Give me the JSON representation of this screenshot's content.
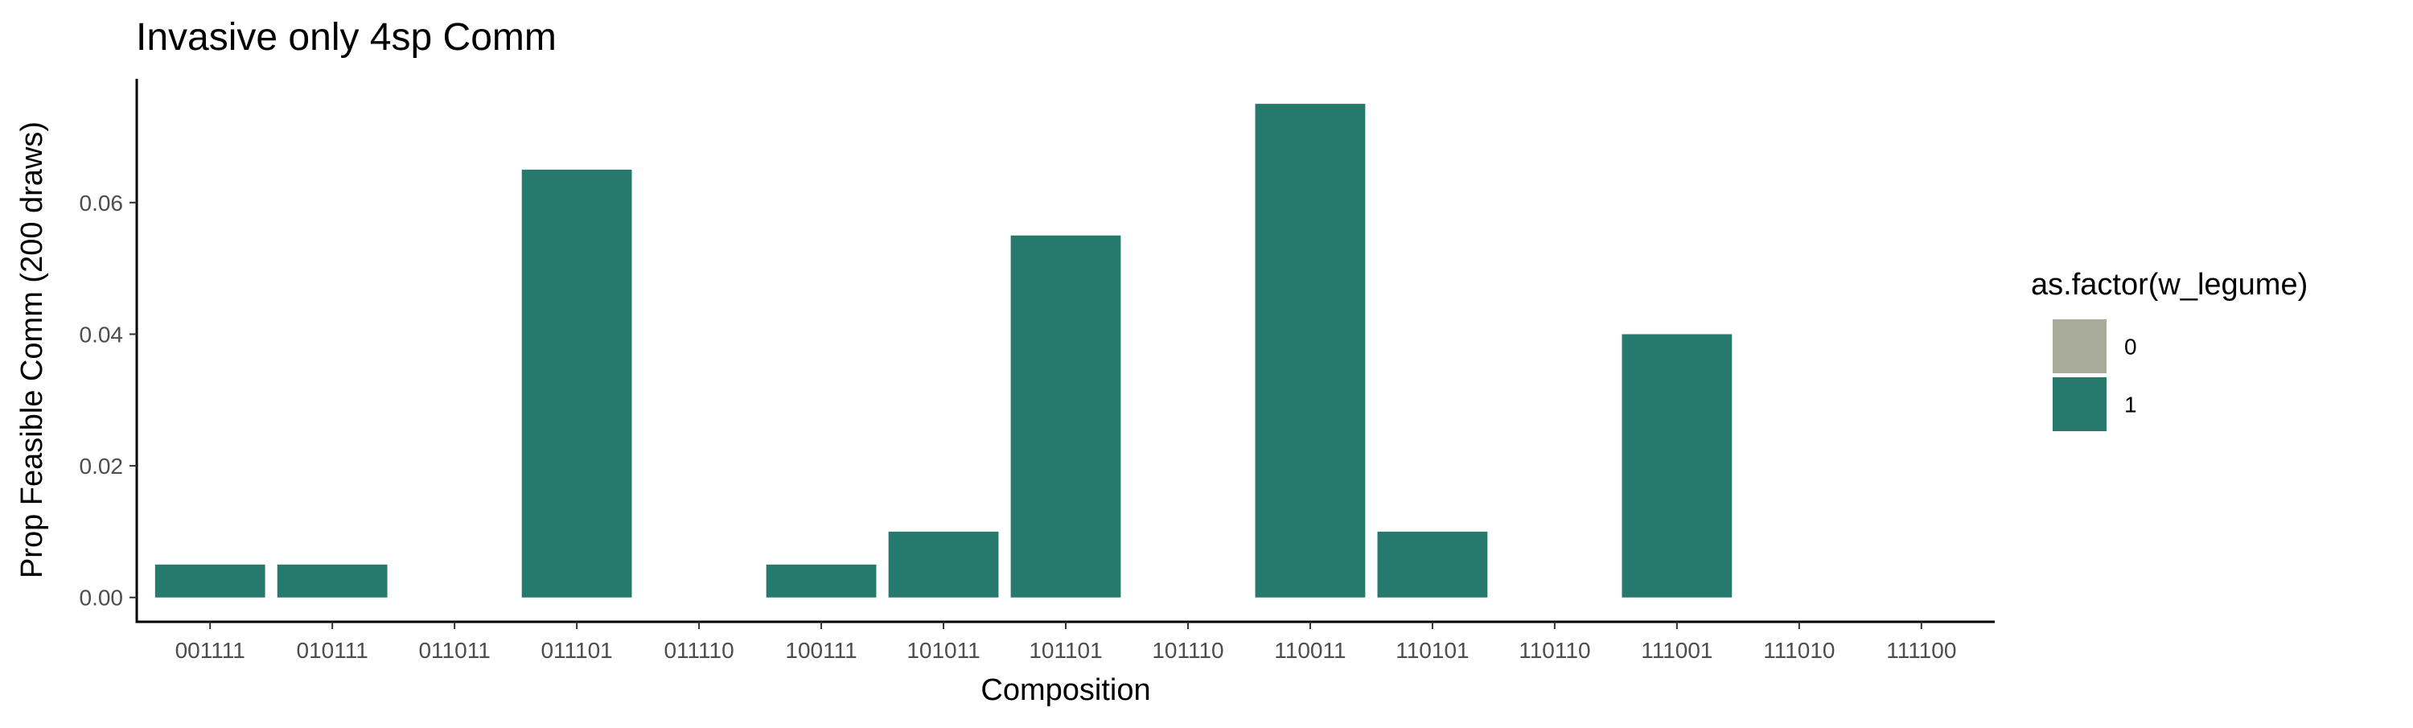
{
  "chart_data": {
    "type": "bar",
    "title": "Invasive only 4sp Comm",
    "xlabel": "Composition",
    "ylabel": "Prop Feasible Comm (200 draws)",
    "categories": [
      "001111",
      "010111",
      "011011",
      "011101",
      "011110",
      "100111",
      "101011",
      "101101",
      "101110",
      "110011",
      "110101",
      "110110",
      "111001",
      "111010",
      "111100"
    ],
    "values": [
      0.005,
      0.005,
      0,
      0.065,
      0,
      0.005,
      0.01,
      0.055,
      0,
      0.075,
      0.01,
      0,
      0.04,
      0,
      0
    ],
    "groups": [
      "1",
      "1",
      "1",
      "1",
      "1",
      "1",
      "1",
      "1",
      "1",
      "1",
      "1",
      "1",
      "1",
      "1",
      "1"
    ],
    "ylim": [
      -0.0037,
      0.0788
    ],
    "yticks": [
      0.0,
      0.02,
      0.04,
      0.06
    ],
    "ytick_labels": [
      "0.00",
      "0.02",
      "0.04",
      "0.06"
    ],
    "grid": false,
    "legend": {
      "title": "as.factor(w_legume)",
      "placement": "right",
      "entries": [
        {
          "label": "0",
          "color": "#a9ab9a"
        },
        {
          "label": "1",
          "color": "#26796d"
        }
      ]
    },
    "colors": {
      "0": "#a9ab9a",
      "1": "#26796d"
    }
  }
}
